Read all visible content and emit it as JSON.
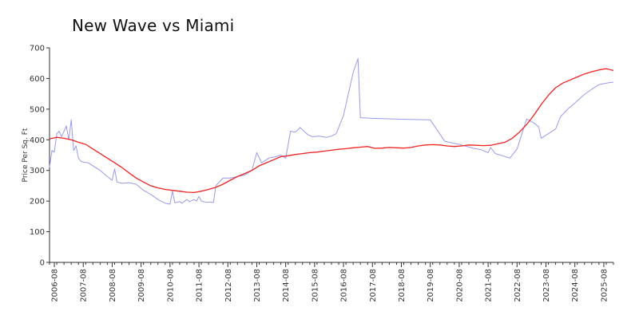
{
  "chart_data": {
    "type": "line",
    "title": "New Wave vs Miami",
    "xlabel": "",
    "ylabel": "Price Per Sq. Ft",
    "ylim": [
      0,
      700
    ],
    "xlim": [
      "2006-06",
      "2025-12"
    ],
    "y_ticks": [
      0,
      100,
      200,
      300,
      400,
      500,
      600,
      700
    ],
    "x_ticks": [
      "2006-08",
      "2007-08",
      "2008-08",
      "2009-08",
      "2010-08",
      "2011-08",
      "2012-08",
      "2013-08",
      "2014-08",
      "2015-08",
      "2016-08",
      "2017-08",
      "2018-08",
      "2019-08",
      "2020-08",
      "2021-08",
      "2022-08",
      "2023-08",
      "2024-08",
      "2025-08"
    ],
    "grid": false,
    "legend": "none",
    "series": [
      {
        "color": "#9999ee",
        "points": [
          [
            "2006-06",
            310
          ],
          [
            "2006-07",
            365
          ],
          [
            "2006-08",
            360
          ],
          [
            "2006-09",
            420
          ],
          [
            "2006-10",
            428
          ],
          [
            "2006-11",
            410
          ],
          [
            "2007-01",
            445
          ],
          [
            "2007-02",
            400
          ],
          [
            "2007-03",
            465
          ],
          [
            "2007-04",
            365
          ],
          [
            "2007-05",
            380
          ],
          [
            "2007-06",
            340
          ],
          [
            "2007-07",
            330
          ],
          [
            "2007-08",
            327
          ],
          [
            "2007-10",
            325
          ],
          [
            "2007-12",
            315
          ],
          [
            "2008-03",
            300
          ],
          [
            "2008-06",
            280
          ],
          [
            "2008-08",
            268
          ],
          [
            "2008-09",
            305
          ],
          [
            "2008-10",
            262
          ],
          [
            "2008-12",
            258
          ],
          [
            "2009-03",
            260
          ],
          [
            "2009-06",
            255
          ],
          [
            "2009-09",
            235
          ],
          [
            "2009-12",
            222
          ],
          [
            "2010-03",
            205
          ],
          [
            "2010-06",
            193
          ],
          [
            "2010-08",
            190
          ],
          [
            "2010-09",
            232
          ],
          [
            "2010-10",
            195
          ],
          [
            "2010-12",
            198
          ],
          [
            "2011-01",
            193
          ],
          [
            "2011-03",
            205
          ],
          [
            "2011-04",
            198
          ],
          [
            "2011-06",
            205
          ],
          [
            "2011-07",
            200
          ],
          [
            "2011-08",
            215
          ],
          [
            "2011-09",
            200
          ],
          [
            "2011-11",
            196
          ],
          [
            "2012-01",
            197
          ],
          [
            "2012-02",
            195
          ],
          [
            "2012-03",
            250
          ],
          [
            "2012-06",
            275
          ],
          [
            "2012-09",
            275
          ],
          [
            "2012-12",
            280
          ],
          [
            "2013-03",
            285
          ],
          [
            "2013-06",
            300
          ],
          [
            "2013-08",
            358
          ],
          [
            "2013-10",
            325
          ],
          [
            "2014-01",
            340
          ],
          [
            "2014-04",
            345
          ],
          [
            "2014-06",
            350
          ],
          [
            "2014-08",
            340
          ],
          [
            "2014-10",
            428
          ],
          [
            "2014-12",
            425
          ],
          [
            "2015-02",
            440
          ],
          [
            "2015-05",
            418
          ],
          [
            "2015-07",
            410
          ],
          [
            "2015-10",
            412
          ],
          [
            "2016-01",
            408
          ],
          [
            "2016-03",
            412
          ],
          [
            "2016-05",
            420
          ],
          [
            "2016-08",
            480
          ],
          [
            "2016-12",
            620
          ],
          [
            "2017-02",
            665
          ],
          [
            "2017-03",
            472
          ],
          [
            "2017-08",
            470
          ],
          [
            "2018-08",
            467
          ],
          [
            "2019-08",
            465
          ],
          [
            "2019-11",
            430
          ],
          [
            "2020-02",
            395
          ],
          [
            "2020-08",
            385
          ],
          [
            "2021-02",
            372
          ],
          [
            "2021-05",
            368
          ],
          [
            "2021-08",
            358
          ],
          [
            "2021-09",
            375
          ],
          [
            "2021-11",
            355
          ],
          [
            "2022-02",
            348
          ],
          [
            "2022-05",
            340
          ],
          [
            "2022-08",
            370
          ],
          [
            "2022-12",
            468
          ],
          [
            "2023-03",
            455
          ],
          [
            "2023-05",
            442
          ],
          [
            "2023-06",
            405
          ],
          [
            "2023-09",
            420
          ],
          [
            "2023-12",
            435
          ],
          [
            "2024-02",
            475
          ],
          [
            "2024-05",
            500
          ],
          [
            "2024-08",
            520
          ],
          [
            "2024-12",
            548
          ],
          [
            "2025-03",
            565
          ],
          [
            "2025-06",
            580
          ],
          [
            "2025-09",
            585
          ],
          [
            "2025-12",
            588
          ]
        ]
      },
      {
        "color": "#ee2222",
        "points": [
          [
            "2006-06",
            403
          ],
          [
            "2006-09",
            408
          ],
          [
            "2006-12",
            405
          ],
          [
            "2007-03",
            400
          ],
          [
            "2007-06",
            392
          ],
          [
            "2007-09",
            385
          ],
          [
            "2007-12",
            370
          ],
          [
            "2008-03",
            355
          ],
          [
            "2008-06",
            340
          ],
          [
            "2008-09",
            325
          ],
          [
            "2008-12",
            310
          ],
          [
            "2009-03",
            292
          ],
          [
            "2009-06",
            275
          ],
          [
            "2009-09",
            262
          ],
          [
            "2009-12",
            250
          ],
          [
            "2010-03",
            243
          ],
          [
            "2010-06",
            238
          ],
          [
            "2010-09",
            235
          ],
          [
            "2010-12",
            232
          ],
          [
            "2011-03",
            229
          ],
          [
            "2011-06",
            228
          ],
          [
            "2011-09",
            232
          ],
          [
            "2011-12",
            238
          ],
          [
            "2012-03",
            245
          ],
          [
            "2012-06",
            255
          ],
          [
            "2012-09",
            268
          ],
          [
            "2012-12",
            280
          ],
          [
            "2013-03",
            290
          ],
          [
            "2013-06",
            300
          ],
          [
            "2013-09",
            315
          ],
          [
            "2013-12",
            325
          ],
          [
            "2014-03",
            335
          ],
          [
            "2014-06",
            345
          ],
          [
            "2014-09",
            348
          ],
          [
            "2014-12",
            352
          ],
          [
            "2015-03",
            355
          ],
          [
            "2015-06",
            358
          ],
          [
            "2015-09",
            360
          ],
          [
            "2015-12",
            363
          ],
          [
            "2016-03",
            366
          ],
          [
            "2016-06",
            369
          ],
          [
            "2016-09",
            371
          ],
          [
            "2016-12",
            374
          ],
          [
            "2017-03",
            376
          ],
          [
            "2017-06",
            378
          ],
          [
            "2017-09",
            372
          ],
          [
            "2017-12",
            373
          ],
          [
            "2018-03",
            375
          ],
          [
            "2018-06",
            374
          ],
          [
            "2018-09",
            373
          ],
          [
            "2018-12",
            375
          ],
          [
            "2019-03",
            380
          ],
          [
            "2019-06",
            383
          ],
          [
            "2019-09",
            384
          ],
          [
            "2019-12",
            383
          ],
          [
            "2020-03",
            380
          ],
          [
            "2020-06",
            378
          ],
          [
            "2020-09",
            380
          ],
          [
            "2020-12",
            383
          ],
          [
            "2021-03",
            382
          ],
          [
            "2021-06",
            381
          ],
          [
            "2021-09",
            382
          ],
          [
            "2021-12",
            387
          ],
          [
            "2022-03",
            392
          ],
          [
            "2022-06",
            405
          ],
          [
            "2022-09",
            425
          ],
          [
            "2022-12",
            450
          ],
          [
            "2023-03",
            480
          ],
          [
            "2023-06",
            515
          ],
          [
            "2023-09",
            545
          ],
          [
            "2023-12",
            570
          ],
          [
            "2024-03",
            585
          ],
          [
            "2024-06",
            595
          ],
          [
            "2024-09",
            605
          ],
          [
            "2024-12",
            615
          ],
          [
            "2025-03",
            622
          ],
          [
            "2025-06",
            628
          ],
          [
            "2025-09",
            632
          ],
          [
            "2025-12",
            626
          ]
        ]
      }
    ]
  }
}
